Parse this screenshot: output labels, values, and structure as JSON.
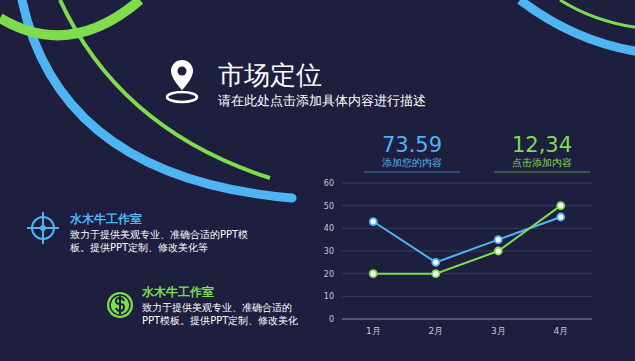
{
  "header": {
    "title": "市场定位",
    "subtitle": "请在此处点击添加具体内容进行描述"
  },
  "stats": [
    {
      "value": "73.59",
      "label": "添加您的内容"
    },
    {
      "value": "12,34",
      "label": "点击添加内容"
    }
  ],
  "features": [
    {
      "title": "水木牛工作室",
      "lines": [
        "致力于提供美观专业、准确合适的PPT模",
        "板。提供PPT定制、修改美化等"
      ]
    },
    {
      "title": "水木牛工作室",
      "lines": [
        "致力于提供美观专业、准确合适的",
        "PPT模板。提供PPT定制、修改美化"
      ]
    }
  ],
  "chart_data": {
    "type": "line",
    "categories": [
      "1月",
      "2月",
      "3月",
      "4月"
    ],
    "series": [
      {
        "color": "#4fb4f2",
        "marker": "circle",
        "values": [
          43,
          25,
          35,
          45
        ]
      },
      {
        "color": "#7fdc4c",
        "marker": "circle",
        "values": [
          20,
          20,
          30,
          50
        ]
      }
    ],
    "ylim": [
      0,
      60
    ],
    "yticks": [
      0,
      10,
      20,
      30,
      40,
      50,
      60
    ],
    "grid": true
  }
}
